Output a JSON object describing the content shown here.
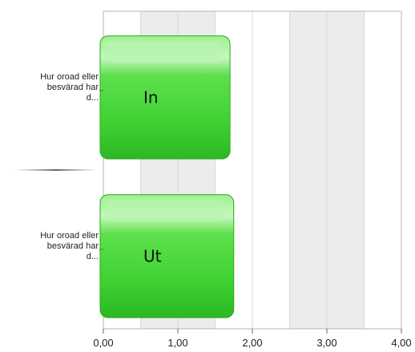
{
  "chart_data": {
    "type": "bar",
    "orientation": "horizontal",
    "categories": [
      [
        "Hur oroad eller",
        "besvärad har",
        "d..."
      ],
      [
        "Hur oroad eller",
        "besvärad har",
        "d..."
      ]
    ],
    "series": [
      {
        "values": [
          1.7,
          1.75
        ]
      }
    ],
    "bar_labels": [
      "In",
      "Ut"
    ],
    "x_ticks": [
      "0,00",
      "1,00",
      "2,00",
      "3,00",
      "4,00"
    ],
    "xlim": [
      0,
      4
    ],
    "grid": true,
    "bar_color": "#3ad13a",
    "bar_highlight": "#b8f3b0",
    "alt_band_color": "#ececec"
  }
}
